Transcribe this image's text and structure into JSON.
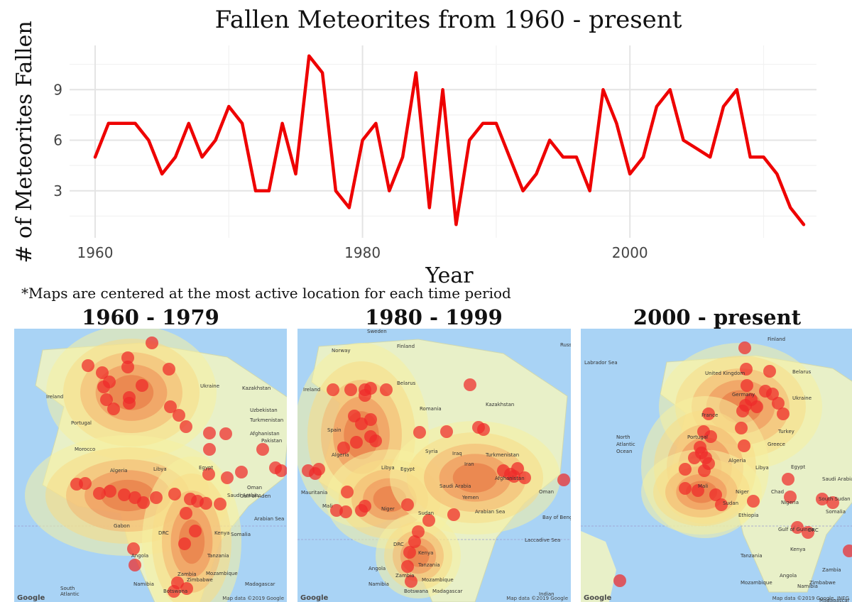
{
  "title": "Fallen Meteorites from 1960 - present",
  "chart_data": {
    "type": "line",
    "title": "Fallen Meteorites from 1960 - present",
    "xlabel": "Year",
    "ylabel": "# of Meteorites Fallen",
    "xlim": [
      1960,
      2013
    ],
    "ylim": [
      1,
      11
    ],
    "xticks": [
      1960,
      1980,
      2000
    ],
    "yticks": [
      3,
      6,
      9
    ],
    "grid": true,
    "series": [
      {
        "color": "#ee0000",
        "x": [
          1960,
          1961,
          1962,
          1963,
          1964,
          1965,
          1966,
          1967,
          1968,
          1969,
          1970,
          1971,
          1972,
          1973,
          1974,
          1975,
          1976,
          1977,
          1978,
          1979,
          1980,
          1981,
          1982,
          1983,
          1984,
          1985,
          1986,
          1987,
          1988,
          1989,
          1990,
          1991,
          1992,
          1993,
          1994,
          1995,
          1996,
          1997,
          1998,
          1999,
          2000,
          2001,
          2002,
          2003,
          2004,
          2005,
          2006,
          2007,
          2008,
          2009,
          2010,
          2011,
          2012,
          2013
        ],
        "y": [
          5,
          7,
          7,
          7,
          6,
          4,
          5,
          7,
          5,
          6,
          8,
          7,
          3,
          3,
          7,
          4,
          11,
          10,
          3,
          2,
          6,
          7,
          3,
          5,
          10,
          2,
          9,
          1,
          6,
          7,
          7,
          5,
          3,
          4,
          6,
          5,
          5,
          3,
          9,
          7,
          4,
          5,
          8,
          9,
          6,
          5.5,
          5,
          8,
          9,
          5,
          5,
          4,
          2,
          1
        ]
      }
    ]
  },
  "note": "*Maps are centered at the most active location for each time period",
  "maps": [
    {
      "title": "1960 - 1979",
      "labels": [
        "Ireland",
        "Portugal",
        "Morocco",
        "Algeria",
        "Libya",
        "Egypt",
        "Saudi Arabia",
        "Kazakhstan",
        "Uzbekistan",
        "Turkmenistan",
        "Afghanistan",
        "Pakistan",
        "Oman",
        "Ukraine",
        "Gulf of Aden",
        "Arabian Sea",
        "Gabon",
        "DRC",
        "Somalia",
        "Kenya",
        "Tanzania",
        "Angola",
        "Zambia",
        "Mozambique",
        "Namibia",
        "Botswana",
        "Zimbabwe",
        "Madagascar",
        "South",
        "Atlantic"
      ],
      "footer": "Map data ©2019 Google",
      "logo": "Google"
    },
    {
      "title": "1980 - 1999",
      "labels": [
        "Sweden",
        "Norway",
        "Finland",
        "Ireland",
        "Belarus",
        "Russia",
        "Kazakhstan",
        "Romania",
        "Spain",
        "Algeria",
        "Libya",
        "Egypt",
        "Syria",
        "Iraq",
        "Iran",
        "Turkmenistan",
        "Afghanistan",
        "Saudi Arabia",
        "Yemen",
        "Mauritania",
        "Mali",
        "Niger",
        "Sudan",
        "Oman",
        "Arabian Sea",
        "Bay of Bengal",
        "Laccadive Sea",
        "Kenya",
        "DRC",
        "Tanzania",
        "Angola",
        "Zambia",
        "Namibia",
        "Botswana",
        "Mozambique",
        "Madagascar",
        "Indian"
      ],
      "footer": "Map data ©2019 Google",
      "logo": "Google"
    },
    {
      "title": "2000 - present",
      "labels": [
        "Finland",
        "Labrador Sea",
        "United Kingdom",
        "Belarus",
        "Germany",
        "Ukraine",
        "France",
        "Turkey",
        "North",
        "Atlantic",
        "Ocean",
        "Portugal",
        "Greece",
        "Algeria",
        "Libya",
        "Egypt",
        "Saudi Arabia",
        "Mali",
        "Niger",
        "Chad",
        "Sudan",
        "Nigeria",
        "South Sudan",
        "Ethiopia",
        "Gulf of Guinea",
        "DRC",
        "Kenya",
        "Tanzania",
        "Angola",
        "Zambia",
        "Mozambique",
        "Namibia",
        "Zimbabwe",
        "Madagascar",
        "Somalia"
      ],
      "footer": "Map data ©2019 Google, INEG",
      "logo": "Google"
    }
  ],
  "colors": {
    "line": "#ee0000",
    "ocean": "#a9d3f5",
    "land": "#e8f0c8",
    "heat_low": "#f5f0a0",
    "heat_high": "#e56a3a",
    "point": "#ee2a2a"
  }
}
